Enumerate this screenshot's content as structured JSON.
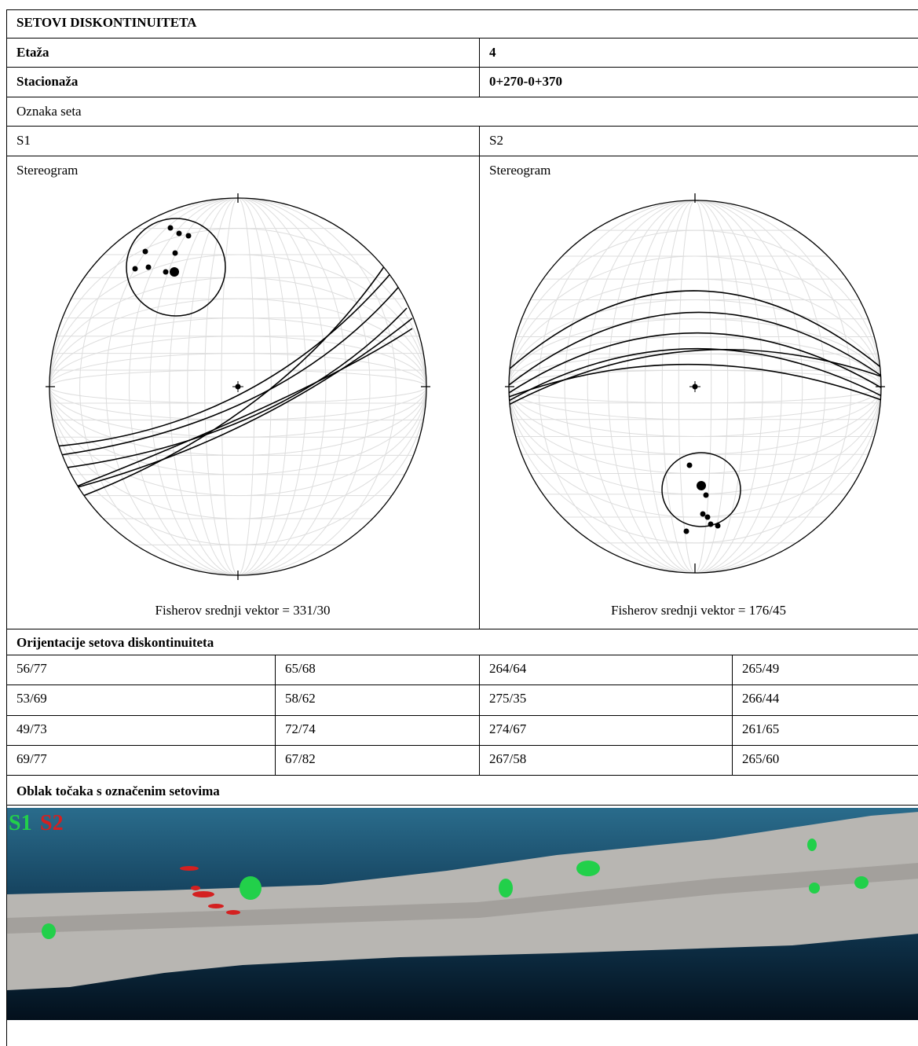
{
  "title": "SETOVI DISKONTINUITETA",
  "etaza": {
    "label": "Etaža",
    "value": "4"
  },
  "stacionaza": {
    "label": "Stacionaža",
    "value": "0+270-0+370"
  },
  "oznaka_seta": "Oznaka seta",
  "sets": [
    {
      "name": "S1",
      "stereogram_label": "Stereogram",
      "caption": "Fisherov srednji vektor = 331/30"
    },
    {
      "name": "S2",
      "stereogram_label": "Stereogram",
      "caption": "Fisherov srednji vektor = 176/45"
    }
  ],
  "orientations": {
    "title": "Orijentacije setova diskontinuiteta",
    "rows": [
      [
        "56/77",
        "65/68",
        "264/64",
        "265/49"
      ],
      [
        "53/69",
        "58/62",
        "275/35",
        "266/44"
      ],
      [
        "49/73",
        "72/74",
        "274/67",
        "261/65"
      ],
      [
        "69/77",
        "67/82",
        "267/58",
        "265/60"
      ]
    ]
  },
  "point_cloud": {
    "title": "Oblak točaka s označenim setovima",
    "legend": [
      "S1",
      "S2"
    ]
  }
}
